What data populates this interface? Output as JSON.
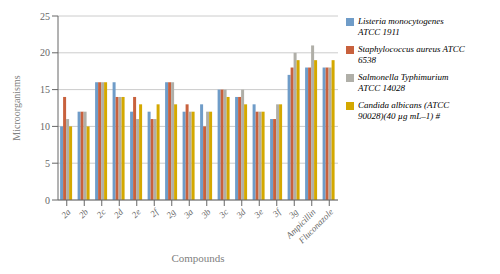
{
  "chart_data": {
    "type": "bar",
    "categories": [
      "2a",
      "2b",
      "2c",
      "2d",
      "2e",
      "2f",
      "2g",
      "3a",
      "3b",
      "3c",
      "3d",
      "3e",
      "3f",
      "3g",
      "Ampicillin",
      "Fluconazole"
    ],
    "series": [
      {
        "name": "Listeria monocytogenes\nATCC 1911",
        "color": "#6F9CC8",
        "values": [
          10,
          12,
          16,
          16,
          12,
          12,
          16,
          12,
          13,
          15,
          14,
          13,
          11,
          17,
          18,
          18
        ]
      },
      {
        "name": "Staphylococcus aureus ATCC\n6538",
        "color": "#C8613D",
        "values": [
          14,
          12,
          16,
          14,
          14,
          11,
          16,
          13,
          10,
          15,
          14,
          12,
          11,
          18,
          18,
          18
        ]
      },
      {
        "name": "Salmonella Typhimurium\nATCC 14028",
        "color": "#B0AFA8",
        "values": [
          11,
          12,
          16,
          14,
          11,
          11,
          16,
          12,
          12,
          15,
          15,
          12,
          13,
          20,
          21,
          18
        ]
      },
      {
        "name": "Candida albicans (ATCC\n90028)(40 µg mL–1) #",
        "color": "#D4A800",
        "values": [
          10,
          10,
          16,
          14,
          13,
          13,
          13,
          12,
          12,
          14,
          13,
          12,
          13,
          19,
          19,
          19
        ]
      }
    ],
    "xlabel": "Compounds",
    "ylabel": "Microorganisms",
    "ylim": [
      0,
      25
    ],
    "yticks": [
      0,
      5,
      10,
      15,
      20,
      25
    ],
    "grid": true,
    "legend": "right"
  }
}
